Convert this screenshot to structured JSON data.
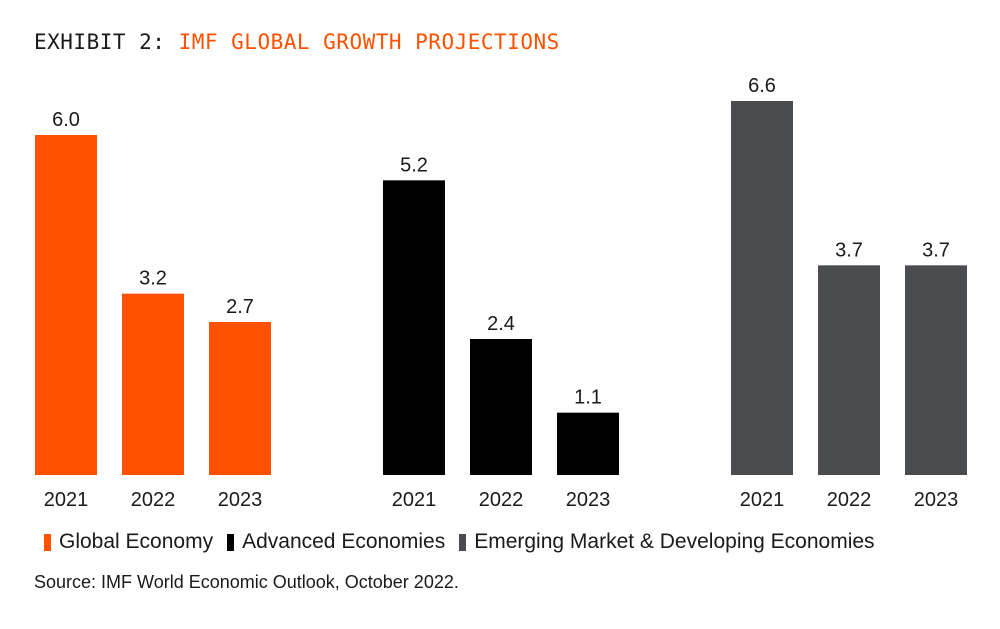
{
  "title_prefix": "EXHIBIT 2:",
  "title_main": "IMF GLOBAL GROWTH PROJECTIONS",
  "source": "Source: IMF World Economic Outlook, October 2022.",
  "colors": {
    "title_accent": "#ff5100",
    "text": "#1a1a1a"
  },
  "chart_data": {
    "type": "bar",
    "title": "IMF GLOBAL GROWTH PROJECTIONS",
    "xlabel": "",
    "ylabel": "",
    "categories": [
      "2021",
      "2022",
      "2023"
    ],
    "ylim": [
      0,
      7
    ],
    "grid": false,
    "legend_position": "bottom",
    "series": [
      {
        "name": "Global Economy",
        "color": "#ff5100",
        "values": [
          6.0,
          3.2,
          2.7
        ],
        "labels": [
          "6.0",
          "3.2",
          "2.7"
        ]
      },
      {
        "name": "Advanced Economies",
        "color": "#000000",
        "values": [
          5.2,
          2.4,
          1.1
        ],
        "labels": [
          "5.2",
          "2.4",
          "1.1"
        ]
      },
      {
        "name": "Emerging Market & Developing Economies",
        "color": "#4a4c50",
        "values": [
          6.6,
          3.7,
          3.7
        ],
        "labels": [
          "6.6",
          "3.7",
          "3.7"
        ]
      }
    ]
  }
}
